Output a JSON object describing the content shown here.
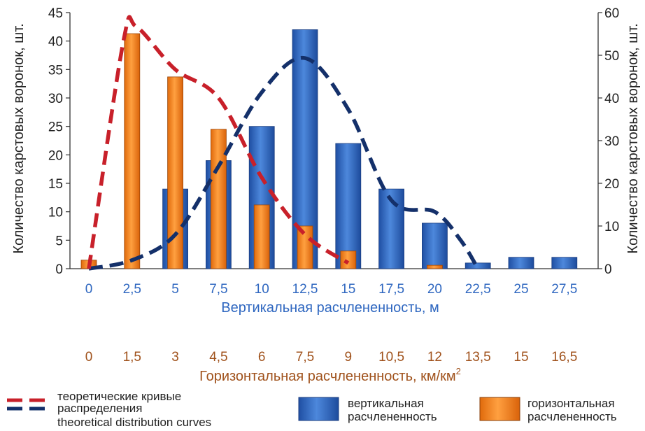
{
  "chart_data": {
    "type": "bar",
    "categories_vertical": [
      "0",
      "2,5",
      "5",
      "7,5",
      "10",
      "12,5",
      "15",
      "17,5",
      "20",
      "22,5",
      "25",
      "27,5"
    ],
    "categories_horizontal": [
      "0",
      "1,5",
      "3",
      "4,5",
      "6",
      "7,5",
      "9",
      "10,5",
      "12",
      "13,5",
      "15",
      "16,5"
    ],
    "xlabel_vertical": "Вертикальная расчлененность, м",
    "xlabel_horizontal": "Горизонтальная расчлененность, км/км",
    "xlabel_horizontal_sup": "2",
    "ylabel_left": "Количество карстовых воронок, шт.",
    "ylabel_right": "Количество карстовых воронок, шт.",
    "ylim_left": [
      0,
      45
    ],
    "yticks_left": [
      0,
      5,
      10,
      15,
      20,
      25,
      30,
      35,
      40,
      45
    ],
    "ylim_right": [
      0,
      60
    ],
    "yticks_right": [
      0,
      10,
      20,
      30,
      40,
      50,
      60
    ],
    "series": [
      {
        "name": "вертикальная расчлененность",
        "axis": "left",
        "color": "#2f67c0",
        "values": [
          0,
          0,
          14,
          19,
          25,
          42,
          22,
          14,
          8,
          1,
          2,
          2
        ]
      },
      {
        "name": "горизонтальная расчлененность",
        "axis": "left",
        "color": "#f7821e",
        "values": [
          1.5,
          41.3,
          33.7,
          24.5,
          11.2,
          7.5,
          3.1,
          0,
          0.6,
          0,
          0,
          0
        ]
      }
    ],
    "curves": [
      {
        "name": "theoretical-curve-vertical",
        "color": "#14306a",
        "x_index": [
          0,
          1,
          2,
          3,
          4,
          5,
          6,
          7,
          8,
          8.6,
          9
        ],
        "y": [
          0,
          1.5,
          6,
          18,
          31,
          37,
          28,
          12,
          10,
          5,
          0
        ]
      },
      {
        "name": "theoretical-curve-horizontal",
        "color": "#c8202a",
        "x_index": [
          0,
          0.8,
          1.1,
          2,
          3,
          4,
          5,
          6
        ],
        "y": [
          0,
          40,
          42.5,
          35,
          30,
          16,
          6,
          1
        ]
      }
    ],
    "legend": {
      "curves_label_line1": "теоретические кривые",
      "curves_label_line2": "распределения",
      "curves_label_en": "theoretical distribution curves",
      "vertical_line1": "вертикальная",
      "vertical_line2": "расчлененность",
      "horizontal_line1": "горизонтальная",
      "horizontal_line2": "расчлененность",
      "placement": "bottom"
    }
  }
}
